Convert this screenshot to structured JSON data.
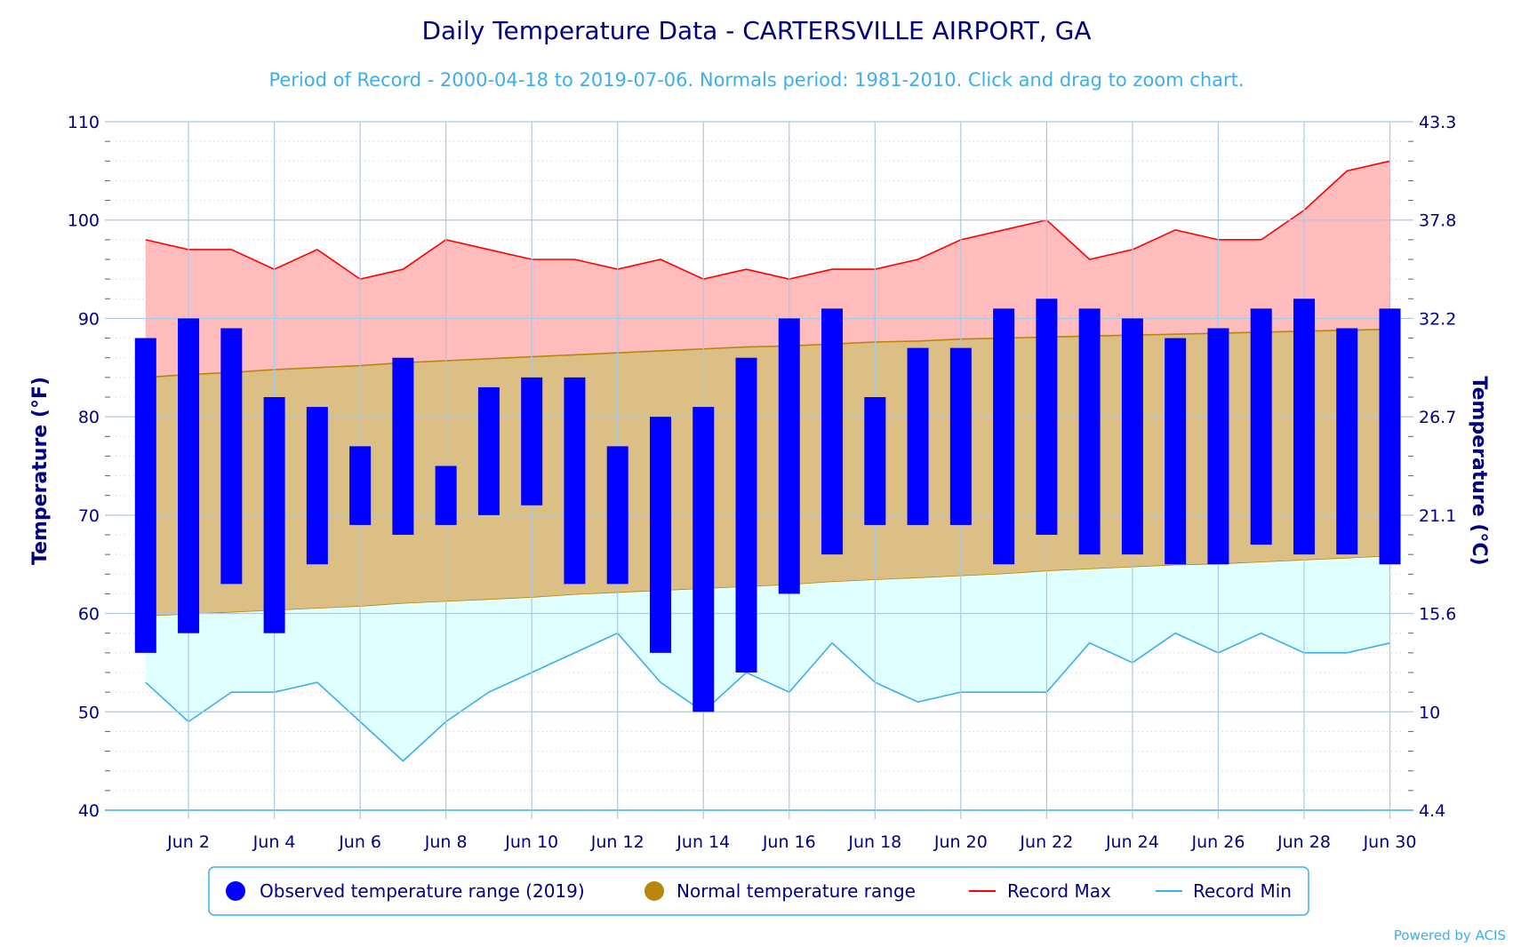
{
  "chart_data": {
    "type": "bar",
    "title": "Daily Temperature Data - CARTERSVILLE AIRPORT, GA",
    "subtitle": "Period of Record - 2000-04-18 to 2019-07-06. Normals period: 1981-2010. Click and drag to zoom chart.",
    "ylabel": "Temperature (°F)",
    "y2label": "Temperature (°C)",
    "ylim": [
      40,
      110
    ],
    "yticks": [
      40,
      50,
      60,
      70,
      80,
      90,
      100,
      110
    ],
    "y2ticks": [
      "4.4",
      "10",
      "15.6",
      "21.1",
      "26.7",
      "32.2",
      "37.8",
      "43.3"
    ],
    "xlim": [
      0.3,
      30.3
    ],
    "xticks": [
      {
        "day": 2,
        "label": "Jun 2"
      },
      {
        "day": 4,
        "label": "Jun 4"
      },
      {
        "day": 6,
        "label": "Jun 6"
      },
      {
        "day": 8,
        "label": "Jun 8"
      },
      {
        "day": 10,
        "label": "Jun 10"
      },
      {
        "day": 12,
        "label": "Jun 12"
      },
      {
        "day": 14,
        "label": "Jun 14"
      },
      {
        "day": 16,
        "label": "Jun 16"
      },
      {
        "day": 18,
        "label": "Jun 18"
      },
      {
        "day": 20,
        "label": "Jun 20"
      },
      {
        "day": 22,
        "label": "Jun 22"
      },
      {
        "day": 24,
        "label": "Jun 24"
      },
      {
        "day": 26,
        "label": "Jun 26"
      },
      {
        "day": 28,
        "label": "Jun 28"
      },
      {
        "day": 30,
        "label": "Jun 30"
      }
    ],
    "grid": true,
    "legend_position": "bottom",
    "days": [
      1,
      2,
      3,
      4,
      5,
      6,
      7,
      8,
      9,
      10,
      11,
      12,
      13,
      14,
      15,
      16,
      17,
      18,
      19,
      20,
      21,
      22,
      23,
      24,
      25,
      26,
      27,
      28,
      29,
      30
    ],
    "series": [
      {
        "name": "Observed temperature range (2019)",
        "color": "#0000ff",
        "low": [
          56,
          58,
          63,
          58,
          65,
          69,
          68,
          69,
          70,
          71,
          63,
          63,
          56,
          50,
          54,
          62,
          66,
          69,
          69,
          69,
          65,
          68,
          66,
          66,
          65,
          65,
          67,
          66,
          66,
          65
        ],
        "high": [
          88,
          90,
          89,
          82,
          81,
          77,
          86,
          75,
          83,
          84,
          84,
          77,
          80,
          81,
          86,
          90,
          91,
          82,
          87,
          87,
          91,
          92,
          91,
          90,
          88,
          89,
          91,
          92,
          89,
          91
        ]
      },
      {
        "name": "Normal temperature range",
        "color": "#b8860b",
        "low": [
          59.7,
          59.9,
          60.1,
          60.3,
          60.5,
          60.7,
          61.0,
          61.2,
          61.4,
          61.6,
          61.9,
          62.1,
          62.3,
          62.5,
          62.7,
          62.9,
          63.2,
          63.4,
          63.6,
          63.8,
          64.0,
          64.3,
          64.5,
          64.7,
          64.9,
          65.0,
          65.2,
          65.4,
          65.6,
          65.8
        ],
        "high": [
          84.0,
          84.3,
          84.5,
          84.8,
          85.0,
          85.2,
          85.5,
          85.7,
          85.9,
          86.1,
          86.3,
          86.5,
          86.7,
          86.9,
          87.1,
          87.2,
          87.4,
          87.6,
          87.7,
          87.9,
          88.0,
          88.1,
          88.2,
          88.3,
          88.4,
          88.5,
          88.6,
          88.7,
          88.8,
          88.9
        ]
      },
      {
        "name": "Record Max",
        "color": "#ff0000",
        "values": [
          98,
          97,
          97,
          95,
          97,
          94,
          95,
          98,
          97,
          96,
          96,
          95,
          96,
          94,
          95,
          94,
          95,
          95,
          96,
          98,
          99,
          100,
          96,
          97,
          99,
          98,
          98,
          101,
          105,
          106
        ]
      },
      {
        "name": "Record Min",
        "color": "#3daee9",
        "values": [
          53,
          49,
          52,
          52,
          53,
          49,
          45,
          49,
          52,
          54,
          56,
          58,
          53,
          50,
          54,
          52,
          57,
          53,
          51,
          52,
          52,
          52,
          57,
          55,
          58,
          56,
          58,
          56,
          56,
          57
        ]
      }
    ],
    "credit": "Powered by ACIS"
  }
}
